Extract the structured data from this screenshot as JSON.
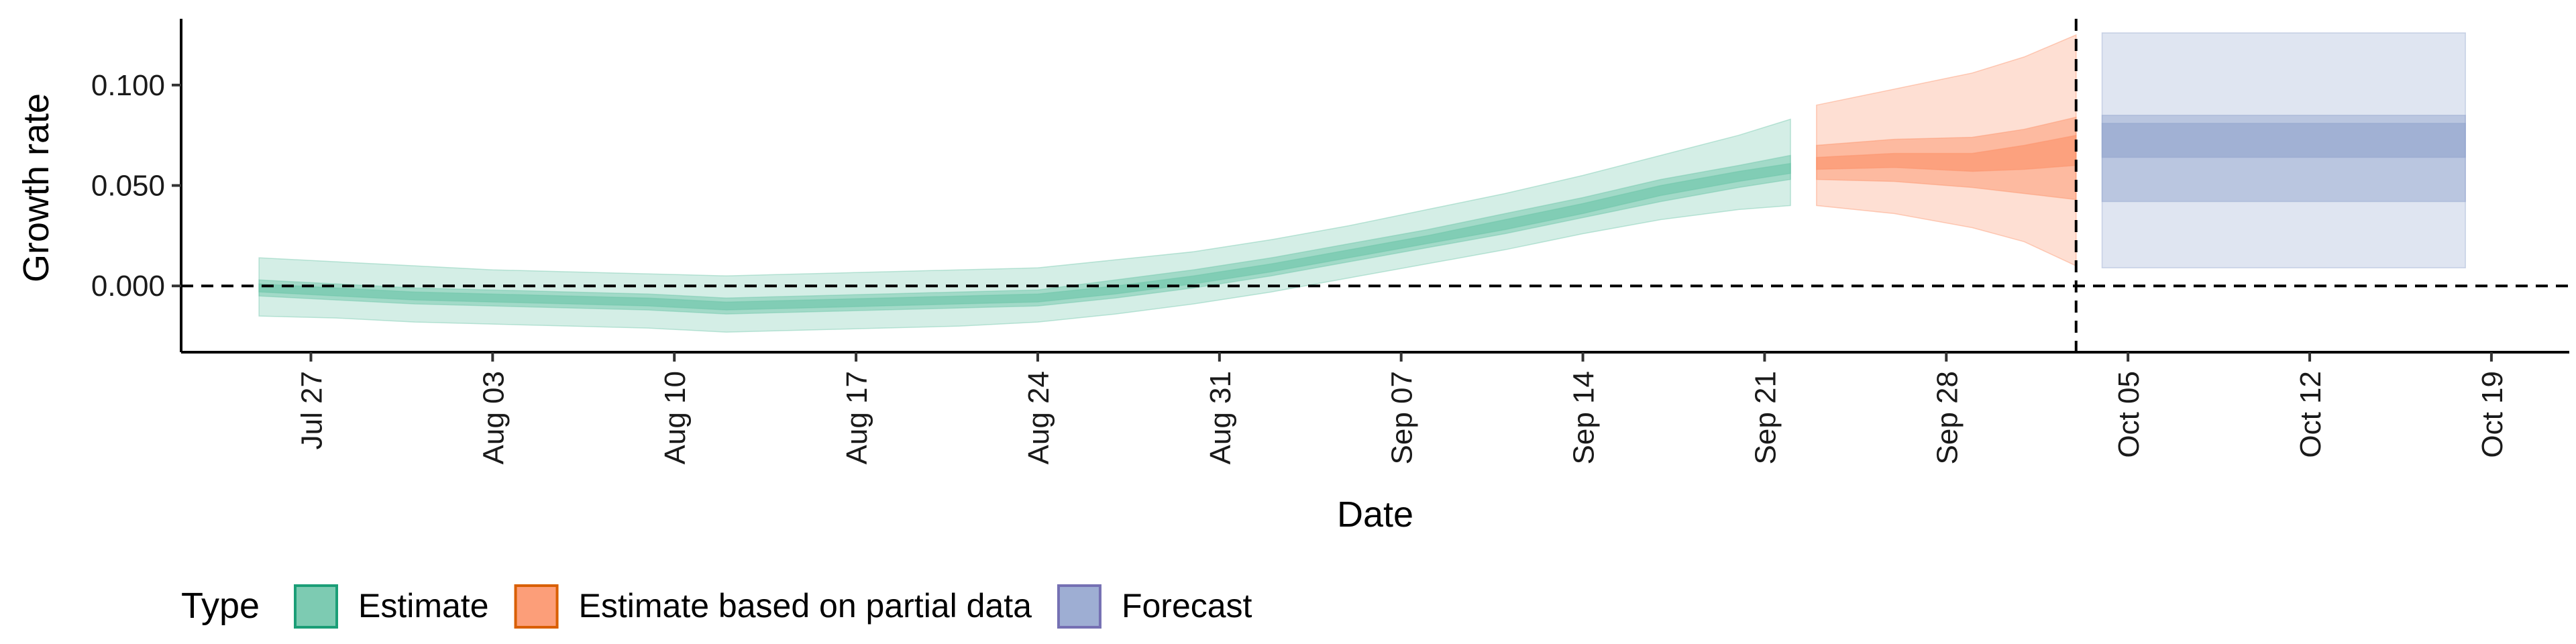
{
  "chart_data": {
    "type": "area",
    "xlabel": "Date",
    "ylabel": "Growth rate",
    "x_type": "date",
    "xlim": [
      "2020-07-22",
      "2020-10-22"
    ],
    "ylim": [
      -0.033,
      0.133
    ],
    "x_ticks": [
      {
        "date": "2020-07-27",
        "label": "Jul 27"
      },
      {
        "date": "2020-08-03",
        "label": "Aug 03"
      },
      {
        "date": "2020-08-10",
        "label": "Aug 10"
      },
      {
        "date": "2020-08-17",
        "label": "Aug 17"
      },
      {
        "date": "2020-08-24",
        "label": "Aug 24"
      },
      {
        "date": "2020-08-31",
        "label": "Aug 31"
      },
      {
        "date": "2020-09-07",
        "label": "Sep 07"
      },
      {
        "date": "2020-09-14",
        "label": "Sep 14"
      },
      {
        "date": "2020-09-21",
        "label": "Sep 21"
      },
      {
        "date": "2020-09-28",
        "label": "Sep 28"
      },
      {
        "date": "2020-10-05",
        "label": "Oct 05"
      },
      {
        "date": "2020-10-12",
        "label": "Oct 12"
      },
      {
        "date": "2020-10-19",
        "label": "Oct 19"
      }
    ],
    "y_ticks": [
      {
        "value": 0.0,
        "label": "0.000"
      },
      {
        "value": 0.05,
        "label": "0.050"
      },
      {
        "value": 0.1,
        "label": "0.100"
      }
    ],
    "reference_lines": {
      "y": 0.0,
      "x": "2020-10-03"
    },
    "legend": {
      "title": "Type",
      "placement": "bottom-left",
      "items": [
        {
          "label": "Estimate",
          "color": "#66c2a5",
          "border": "#1b9e77"
        },
        {
          "label": "Estimate based on partial data",
          "color": "#fc8d62",
          "border": "#d95f02"
        },
        {
          "label": "Forecast",
          "color": "#8da0cb",
          "border": "#7570b3"
        }
      ]
    },
    "series": [
      {
        "name": "Estimate",
        "color": "#66c2a5",
        "points": [
          {
            "date": "2020-07-25",
            "lo90": -0.015,
            "lo50": -0.005,
            "lo20": -0.003,
            "hi20": 0.001,
            "hi50": 0.003,
            "hi90": 0.014
          },
          {
            "date": "2020-07-28",
            "lo90": -0.016,
            "lo50": -0.007,
            "lo20": -0.005,
            "hi20": -0.001,
            "hi50": 0.001,
            "hi90": 0.012
          },
          {
            "date": "2020-07-31",
            "lo90": -0.018,
            "lo50": -0.009,
            "lo20": -0.007,
            "hi20": -0.003,
            "hi50": -0.001,
            "hi90": 0.01
          },
          {
            "date": "2020-08-03",
            "lo90": -0.019,
            "lo50": -0.01,
            "lo20": -0.008,
            "hi20": -0.004,
            "hi50": -0.002,
            "hi90": 0.008
          },
          {
            "date": "2020-08-06",
            "lo90": -0.02,
            "lo50": -0.011,
            "lo20": -0.009,
            "hi20": -0.005,
            "hi50": -0.003,
            "hi90": 0.007
          },
          {
            "date": "2020-08-09",
            "lo90": -0.021,
            "lo50": -0.012,
            "lo20": -0.01,
            "hi20": -0.006,
            "hi50": -0.004,
            "hi90": 0.006
          },
          {
            "date": "2020-08-12",
            "lo90": -0.023,
            "lo50": -0.014,
            "lo20": -0.012,
            "hi20": -0.008,
            "hi50": -0.006,
            "hi90": 0.005
          },
          {
            "date": "2020-08-15",
            "lo90": -0.022,
            "lo50": -0.013,
            "lo20": -0.011,
            "hi20": -0.007,
            "hi50": -0.005,
            "hi90": 0.006
          },
          {
            "date": "2020-08-18",
            "lo90": -0.021,
            "lo50": -0.012,
            "lo20": -0.01,
            "hi20": -0.006,
            "hi50": -0.004,
            "hi90": 0.007
          },
          {
            "date": "2020-08-21",
            "lo90": -0.02,
            "lo50": -0.011,
            "lo20": -0.009,
            "hi20": -0.005,
            "hi50": -0.003,
            "hi90": 0.008
          },
          {
            "date": "2020-08-24",
            "lo90": -0.018,
            "lo50": -0.01,
            "lo20": -0.008,
            "hi20": -0.004,
            "hi50": -0.002,
            "hi90": 0.009
          },
          {
            "date": "2020-08-27",
            "lo90": -0.014,
            "lo50": -0.006,
            "lo20": -0.004,
            "hi20": 0.0,
            "hi50": 0.003,
            "hi90": 0.013
          },
          {
            "date": "2020-08-30",
            "lo90": -0.009,
            "lo50": -0.001,
            "lo20": 0.001,
            "hi20": 0.005,
            "hi50": 0.008,
            "hi90": 0.017
          },
          {
            "date": "2020-09-02",
            "lo90": -0.003,
            "lo50": 0.005,
            "lo20": 0.007,
            "hi20": 0.011,
            "hi50": 0.014,
            "hi90": 0.023
          },
          {
            "date": "2020-09-05",
            "lo90": 0.004,
            "lo50": 0.012,
            "lo20": 0.014,
            "hi20": 0.018,
            "hi50": 0.021,
            "hi90": 0.03
          },
          {
            "date": "2020-09-08",
            "lo90": 0.011,
            "lo50": 0.019,
            "lo20": 0.021,
            "hi20": 0.025,
            "hi50": 0.028,
            "hi90": 0.038
          },
          {
            "date": "2020-09-11",
            "lo90": 0.018,
            "lo50": 0.026,
            "lo20": 0.028,
            "hi20": 0.033,
            "hi50": 0.036,
            "hi90": 0.046
          },
          {
            "date": "2020-09-14",
            "lo90": 0.026,
            "lo50": 0.034,
            "lo20": 0.036,
            "hi20": 0.041,
            "hi50": 0.044,
            "hi90": 0.055
          },
          {
            "date": "2020-09-17",
            "lo90": 0.033,
            "lo50": 0.042,
            "lo20": 0.045,
            "hi20": 0.05,
            "hi50": 0.053,
            "hi90": 0.065
          },
          {
            "date": "2020-09-20",
            "lo90": 0.038,
            "lo50": 0.049,
            "lo20": 0.052,
            "hi20": 0.057,
            "hi50": 0.06,
            "hi90": 0.075
          },
          {
            "date": "2020-09-22",
            "lo90": 0.04,
            "lo50": 0.053,
            "lo20": 0.056,
            "hi20": 0.061,
            "hi50": 0.065,
            "hi90": 0.083
          }
        ]
      },
      {
        "name": "Estimate based on partial data",
        "color": "#fc8d62",
        "points": [
          {
            "date": "2020-09-23",
            "lo90": 0.04,
            "lo50": 0.053,
            "lo20": 0.058,
            "hi20": 0.064,
            "hi50": 0.07,
            "hi90": 0.09
          },
          {
            "date": "2020-09-26",
            "lo90": 0.036,
            "lo50": 0.052,
            "lo20": 0.059,
            "hi20": 0.066,
            "hi50": 0.073,
            "hi90": 0.098
          },
          {
            "date": "2020-09-29",
            "lo90": 0.029,
            "lo50": 0.049,
            "lo20": 0.057,
            "hi20": 0.066,
            "hi50": 0.074,
            "hi90": 0.106
          },
          {
            "date": "2020-10-01",
            "lo90": 0.022,
            "lo50": 0.046,
            "lo20": 0.058,
            "hi20": 0.07,
            "hi50": 0.078,
            "hi90": 0.114
          },
          {
            "date": "2020-10-03",
            "lo90": 0.01,
            "lo50": 0.043,
            "lo20": 0.06,
            "hi20": 0.075,
            "hi50": 0.084,
            "hi90": 0.125
          }
        ]
      },
      {
        "name": "Forecast",
        "color": "#8da0cb",
        "points": [
          {
            "date": "2020-10-04",
            "lo90": 0.009,
            "lo50": 0.042,
            "lo20": 0.064,
            "hi20": 0.081,
            "hi50": 0.085,
            "hi90": 0.126
          },
          {
            "date": "2020-10-18",
            "lo90": 0.009,
            "lo50": 0.042,
            "lo20": 0.064,
            "hi20": 0.081,
            "hi50": 0.085,
            "hi90": 0.126
          }
        ]
      }
    ]
  }
}
